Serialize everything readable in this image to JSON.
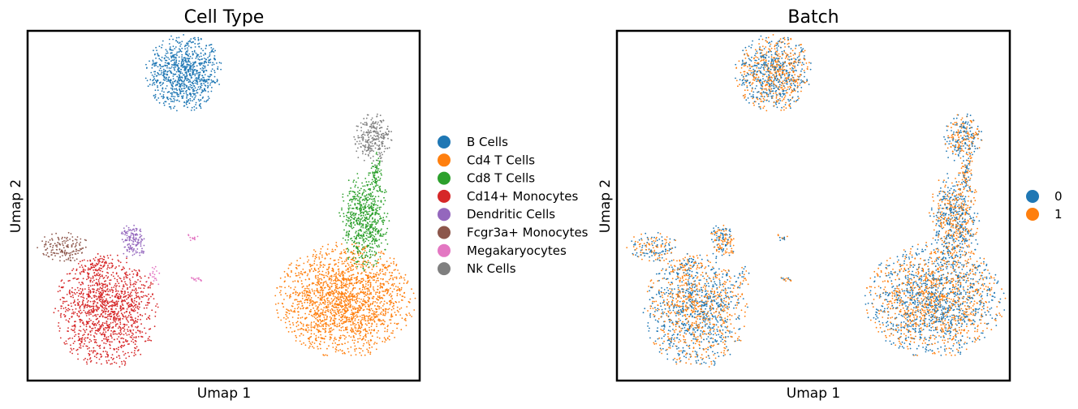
{
  "chart_data": [
    {
      "type": "scatter",
      "title": "Cell Type",
      "xlabel": "Umap 1",
      "ylabel": "Umap 2",
      "xlim": [
        0,
        1
      ],
      "ylim": [
        0,
        1
      ],
      "grid": false,
      "legend_position": "right",
      "series": [
        {
          "name": "B Cells",
          "color": "#1f77b4",
          "clusters": [
            {
              "cx": 0.4,
              "cy": 0.88,
              "rx": 0.09,
              "ry": 0.1,
              "n": 900
            }
          ]
        },
        {
          "name": "Cd4 T Cells",
          "color": "#ff7f0e",
          "clusters": [
            {
              "cx": 0.81,
              "cy": 0.23,
              "rx": 0.16,
              "ry": 0.15,
              "n": 1900
            }
          ]
        },
        {
          "name": "Cd8 T Cells",
          "color": "#2ca02c",
          "clusters": [
            {
              "cx": 0.86,
              "cy": 0.46,
              "rx": 0.06,
              "ry": 0.13,
              "n": 650
            },
            {
              "cx": 0.89,
              "cy": 0.6,
              "rx": 0.015,
              "ry": 0.05,
              "n": 60
            }
          ]
        },
        {
          "name": "Cd14+ Monocytes",
          "color": "#d62728",
          "clusters": [
            {
              "cx": 0.2,
              "cy": 0.2,
              "rx": 0.12,
              "ry": 0.15,
              "n": 1300
            },
            {
              "cx": 0.18,
              "cy": 0.33,
              "rx": 0.05,
              "ry": 0.03,
              "n": 60
            }
          ]
        },
        {
          "name": "Dendritic Cells",
          "color": "#9467bd",
          "clusters": [
            {
              "cx": 0.27,
              "cy": 0.4,
              "rx": 0.03,
              "ry": 0.05,
              "n": 140
            }
          ]
        },
        {
          "name": "Fcgr3a+ Monocytes",
          "color": "#8c564b",
          "clusters": [
            {
              "cx": 0.09,
              "cy": 0.38,
              "rx": 0.06,
              "ry": 0.04,
              "n": 150
            }
          ]
        },
        {
          "name": "Megakaryocytes",
          "color": "#e377c2",
          "clusters": [
            {
              "cx": 0.42,
              "cy": 0.41,
              "rx": 0.015,
              "ry": 0.01,
              "n": 14
            },
            {
              "cx": 0.43,
              "cy": 0.29,
              "rx": 0.02,
              "ry": 0.006,
              "n": 14
            },
            {
              "cx": 0.32,
              "cy": 0.3,
              "rx": 0.02,
              "ry": 0.04,
              "n": 20
            }
          ]
        },
        {
          "name": "Nk Cells",
          "color": "#7f7f7f",
          "clusters": [
            {
              "cx": 0.88,
              "cy": 0.69,
              "rx": 0.045,
              "ry": 0.07,
              "n": 260
            }
          ]
        }
      ]
    },
    {
      "type": "scatter",
      "title": "Batch",
      "xlabel": "Umap 1",
      "ylabel": "Umap 2",
      "xlim": [
        0,
        1
      ],
      "ylim": [
        0,
        1
      ],
      "grid": false,
      "legend_position": "right",
      "series": [
        {
          "name": "0",
          "color": "#1f77b4"
        },
        {
          "name": "1",
          "color": "#ff7f0e"
        }
      ]
    }
  ]
}
